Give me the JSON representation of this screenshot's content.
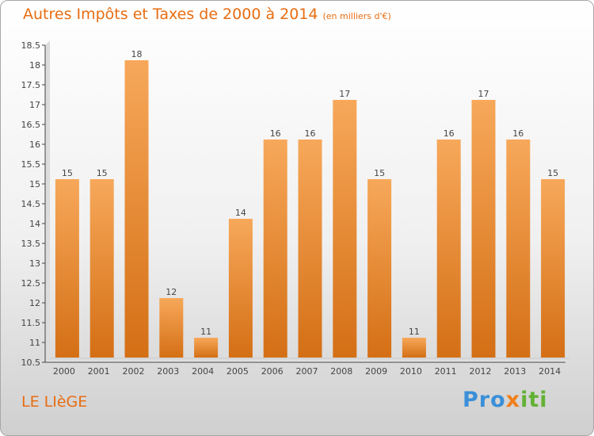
{
  "header": {
    "title": "Autres Impôts et Taxes de 2000 à 2014",
    "unit": "(en milliers d'€)"
  },
  "footer": {
    "commune": "LE LIèGE",
    "logo": [
      "Pro",
      "x",
      "iti"
    ]
  },
  "colors": {
    "bar_top": "#f7a85a",
    "bar_bottom": "#d46f15",
    "accent": "#e86d12"
  },
  "chart_data": {
    "type": "bar",
    "title": "Autres Impôts et Taxes de 2000 à 2014",
    "subtitle": "(en milliers d'€)",
    "xlabel": "",
    "ylabel": "",
    "categories": [
      "2000",
      "2001",
      "2002",
      "2003",
      "2004",
      "2005",
      "2006",
      "2007",
      "2008",
      "2009",
      "2010",
      "2011",
      "2012",
      "2013",
      "2014"
    ],
    "values": [
      15,
      15,
      18,
      12,
      11,
      14,
      16,
      16,
      17,
      15,
      11,
      16,
      17,
      16,
      15
    ],
    "ylim": [
      10.5,
      18.5
    ],
    "yticks": [
      "10.5",
      "11",
      "11.5",
      "12",
      "12.5",
      "13",
      "13.5",
      "14",
      "14.5",
      "15",
      "15.5",
      "16",
      "16.5",
      "17",
      "17.5",
      "18",
      "18.5"
    ],
    "grid": false,
    "legend": "none"
  }
}
